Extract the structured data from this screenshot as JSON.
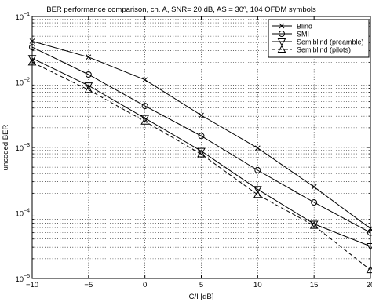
{
  "chart_data": {
    "type": "line",
    "title": "BER performance comparison, ch. A, SNR= 20 dB, AS = 30º, 104 OFDM symbols",
    "xlabel": "C/I [dB]",
    "ylabel": "uncoded BER",
    "xlim": [
      -10,
      20
    ],
    "ylim": [
      1e-05,
      0.1
    ],
    "yscale": "log",
    "grid": true,
    "legend_position": "top-right",
    "x_ticks": [
      -10,
      -5,
      0,
      5,
      10,
      15,
      20
    ],
    "x_tick_labels": [
      "−10",
      "−5",
      "0",
      "5",
      "10",
      "15",
      "20"
    ],
    "y_ticks": [
      1e-05,
      0.0001,
      0.001,
      0.01,
      0.1
    ],
    "y_tick_labels": [
      {
        "base": "10",
        "exp": "−5"
      },
      {
        "base": "10",
        "exp": "−4"
      },
      {
        "base": "10",
        "exp": "−3"
      },
      {
        "base": "10",
        "exp": "−2"
      },
      {
        "base": "10",
        "exp": "−1"
      }
    ],
    "x": [
      -10,
      -5,
      0,
      5,
      10,
      15,
      20
    ],
    "series": [
      {
        "name": "Blind",
        "marker": "x",
        "dash": "solid",
        "values": [
          0.042,
          0.024,
          0.0108,
          0.0031,
          0.00098,
          0.00025,
          5.8e-05
        ]
      },
      {
        "name": "SMI",
        "marker": "circle",
        "dash": "solid",
        "values": [
          0.034,
          0.013,
          0.0043,
          0.0015,
          0.00045,
          0.000145,
          5e-05
        ]
      },
      {
        "name": "Semiblind (preamble)",
        "marker": "triangle-down",
        "dash": "solid",
        "values": [
          0.023,
          0.0088,
          0.0028,
          0.00088,
          0.00023,
          6.8e-05,
          3.1e-05
        ]
      },
      {
        "name": "Semiblind (pilots)",
        "marker": "triangle-up",
        "dash": "dashed",
        "values": [
          0.02,
          0.0076,
          0.0025,
          0.00079,
          0.00019,
          6.4e-05,
          1.35e-05
        ]
      }
    ]
  }
}
